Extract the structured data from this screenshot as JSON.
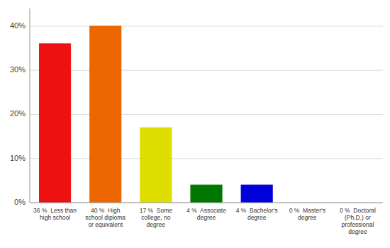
{
  "chart_data": {
    "type": "bar",
    "categories": [
      "36 %  Less than\nhigh school",
      "40 %  High\nschool diploma\nor equivalent",
      "17 %  Some\ncollege, no\ndegree",
      "4 %  Associate\ndegree",
      "4 %  Bachelor's\ndegree",
      "0 %  Master's\ndegree",
      "0 %  Doctoral\n(Ph.D.) or\nprofessional\ndegree"
    ],
    "values": [
      36,
      40,
      17,
      4,
      4,
      0,
      0
    ],
    "colors": [
      "#ee1111",
      "#ee6600",
      "#dddd00",
      "#007700",
      "#0000dd",
      "#9900cc",
      "#ff44cc"
    ],
    "ylim": [
      0,
      44
    ],
    "yticks": [
      {
        "value": 0,
        "label": "0%"
      },
      {
        "value": 10,
        "label": "10%"
      },
      {
        "value": 20,
        "label": "20%"
      },
      {
        "value": 30,
        "label": "30%"
      },
      {
        "value": 40,
        "label": "40%"
      }
    ],
    "grid": true
  }
}
